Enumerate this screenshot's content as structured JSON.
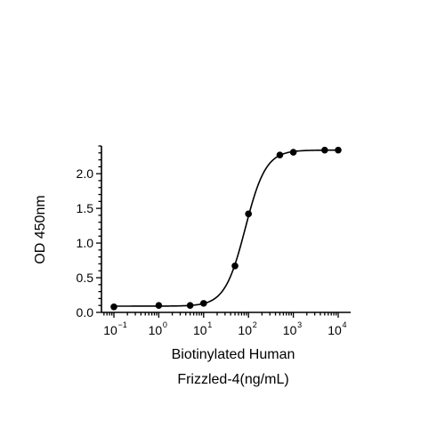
{
  "chart_data": {
    "type": "scatter",
    "title": "",
    "xlabel_lines": [
      "Biotinylated Human",
      "Frizzled-4(ng/mL)"
    ],
    "ylabel": "OD 450nm",
    "x_scale": "log",
    "xlim": [
      0.06,
      20000
    ],
    "ylim": [
      0,
      2.4
    ],
    "x_ticks": [
      {
        "base": "10",
        "exp": "-1"
      },
      {
        "base": "10",
        "exp": "0"
      },
      {
        "base": "10",
        "exp": "1"
      },
      {
        "base": "10",
        "exp": "2"
      },
      {
        "base": "10",
        "exp": "3"
      },
      {
        "base": "10",
        "exp": "4"
      }
    ],
    "y_ticks": [
      "0.0",
      "0.5",
      "1.0",
      "1.5",
      "2.0"
    ],
    "grid": false,
    "series": [
      {
        "x": [
          0.1,
          1,
          5,
          10,
          50,
          100,
          500,
          1000,
          5000,
          10000
        ],
        "y": [
          0.08,
          0.1,
          0.1,
          0.13,
          0.67,
          1.42,
          2.27,
          2.31,
          2.34,
          2.34
        ]
      }
    ],
    "fit_curve": {
      "model": "4PL",
      "bottom": 0.09,
      "top": 2.34,
      "ec50": 85,
      "hill": 1.9
    },
    "colors": {
      "marker": "#000000",
      "line": "#000000",
      "axis": "#000000"
    }
  }
}
